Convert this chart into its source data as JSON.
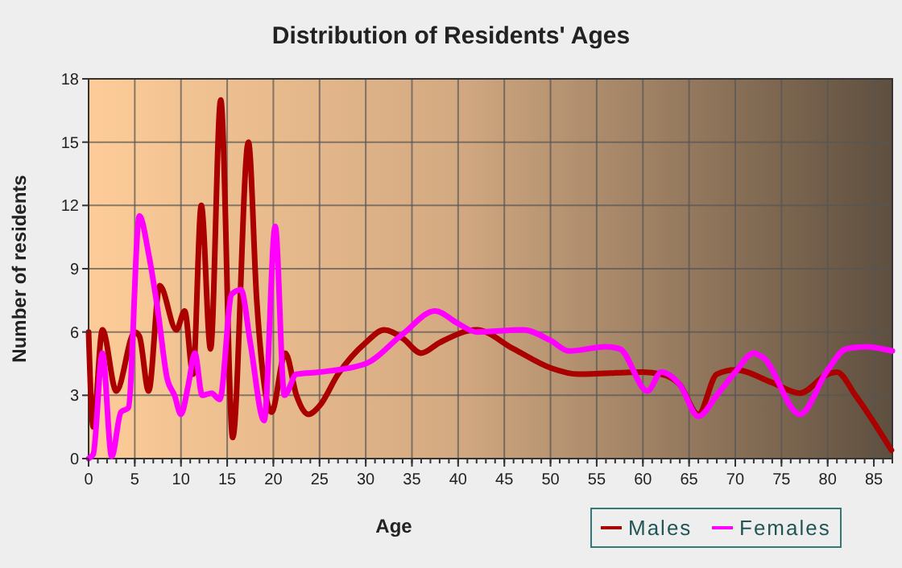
{
  "chart_data": {
    "type": "line",
    "title": "Distribution of Residents' Ages",
    "xlabel": "Age",
    "ylabel": "Number of residents",
    "xlim": [
      0,
      87
    ],
    "xticks": [
      0,
      5,
      10,
      15,
      20,
      25,
      30,
      35,
      40,
      45,
      50,
      55,
      60,
      65,
      70,
      75,
      80,
      85
    ],
    "ylim": [
      0,
      18
    ],
    "yticks": [
      0,
      3,
      6,
      9,
      12,
      15,
      18
    ],
    "grid": true,
    "legend": "bottom right",
    "marker": "none",
    "line_style": "solid",
    "series": [
      {
        "name": "Males",
        "color": "#aa0000",
        "x": [
          0,
          0.5,
          1.5,
          3,
          5,
          5.5,
          6.5,
          7.7,
          9.5,
          10.4,
          11.3,
          12.2,
          13.2,
          14.3,
          15.6,
          17.3,
          18.2,
          19.8,
          21.3,
          22.5,
          23.8,
          25,
          27,
          30,
          32,
          34,
          36,
          38,
          42,
          46,
          50,
          53,
          60,
          62,
          64,
          66,
          68,
          70,
          74,
          77,
          80,
          81,
          83,
          86.9
        ],
        "values": [
          6,
          1.5,
          6.1,
          3.2,
          6,
          5.8,
          3.2,
          8.2,
          6.1,
          7,
          4,
          12,
          5.2,
          17,
          1,
          15,
          7.5,
          2.2,
          5,
          3,
          2.1,
          2.5,
          4,
          5.5,
          6.1,
          5.7,
          5,
          5.5,
          6.1,
          5.2,
          4.3,
          4,
          4.1,
          4,
          3.5,
          2.1,
          4,
          4.2,
          3.6,
          3.1,
          4,
          4.1,
          3,
          0.4
        ]
      },
      {
        "name": "Females",
        "color": "#ff00ff",
        "x": [
          0,
          0.5,
          1.5,
          2.5,
          3.5,
          4.3,
          5.5,
          6.5,
          7.5,
          8.5,
          9.3,
          10,
          10.8,
          11.5,
          12.3,
          13.3,
          14.2,
          15.5,
          16.5,
          17.5,
          19,
          20.2,
          21.2,
          22.5,
          25,
          30,
          34,
          37.5,
          40,
          42,
          47,
          50,
          52,
          56,
          57.5,
          60.5,
          62,
          64,
          66,
          68,
          70,
          72,
          73,
          77,
          80,
          82,
          84,
          87
        ],
        "values": [
          0,
          0.2,
          5,
          0.1,
          2.2,
          2.4,
          11.5,
          9.7,
          7,
          3.8,
          3,
          2.1,
          3.5,
          5,
          3,
          3.1,
          2.8,
          7.8,
          8,
          5.5,
          1.8,
          11,
          3,
          4,
          4.1,
          4.5,
          5.9,
          7,
          6.4,
          6,
          6.1,
          5.6,
          5.1,
          5.3,
          5.2,
          3.2,
          4.1,
          3.5,
          2,
          3,
          4.1,
          5,
          4.8,
          2.1,
          4.2,
          5.2,
          5.3,
          5.1
        ]
      }
    ]
  }
}
